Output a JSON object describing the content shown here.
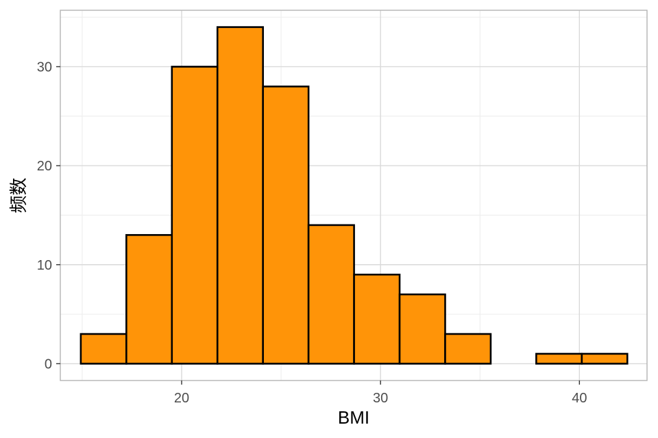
{
  "chart_data": {
    "type": "bar",
    "subtype": "histogram",
    "title": "",
    "xlabel": "BMI",
    "ylabel": "频数",
    "bins": [
      {
        "start": 14.93,
        "end": 17.22,
        "count": 3
      },
      {
        "start": 17.22,
        "end": 19.51,
        "count": 13
      },
      {
        "start": 19.51,
        "end": 21.8,
        "count": 30
      },
      {
        "start": 21.8,
        "end": 24.09,
        "count": 34
      },
      {
        "start": 24.09,
        "end": 26.38,
        "count": 28
      },
      {
        "start": 26.38,
        "end": 28.67,
        "count": 14
      },
      {
        "start": 28.67,
        "end": 30.96,
        "count": 9
      },
      {
        "start": 30.96,
        "end": 33.25,
        "count": 7
      },
      {
        "start": 33.25,
        "end": 35.54,
        "count": 3
      },
      {
        "start": 35.54,
        "end": 37.83,
        "count": 0
      },
      {
        "start": 37.83,
        "end": 40.12,
        "count": 1
      },
      {
        "start": 40.12,
        "end": 42.41,
        "count": 1
      }
    ],
    "xlim": [
      13.9,
      43.4
    ],
    "ylim": [
      -1.7,
      35.7
    ],
    "xticks": [
      20,
      30,
      40
    ],
    "xtick_labels": [
      "20",
      "30",
      "40"
    ],
    "xminor": [
      15,
      25,
      35
    ],
    "yticks": [
      0,
      10,
      20,
      30
    ],
    "ytick_labels": [
      "0",
      "10",
      "20",
      "30"
    ],
    "yminor": [
      5,
      15,
      25,
      35
    ],
    "grid": true,
    "legend": "none",
    "colors": {
      "fill": "#ff9408",
      "outline": "#000000",
      "grid_major": "#d9d9d9",
      "grid_minor": "#ececec",
      "panel_border": "#b3b3b3",
      "tick_text": "#4d4d4d"
    }
  }
}
